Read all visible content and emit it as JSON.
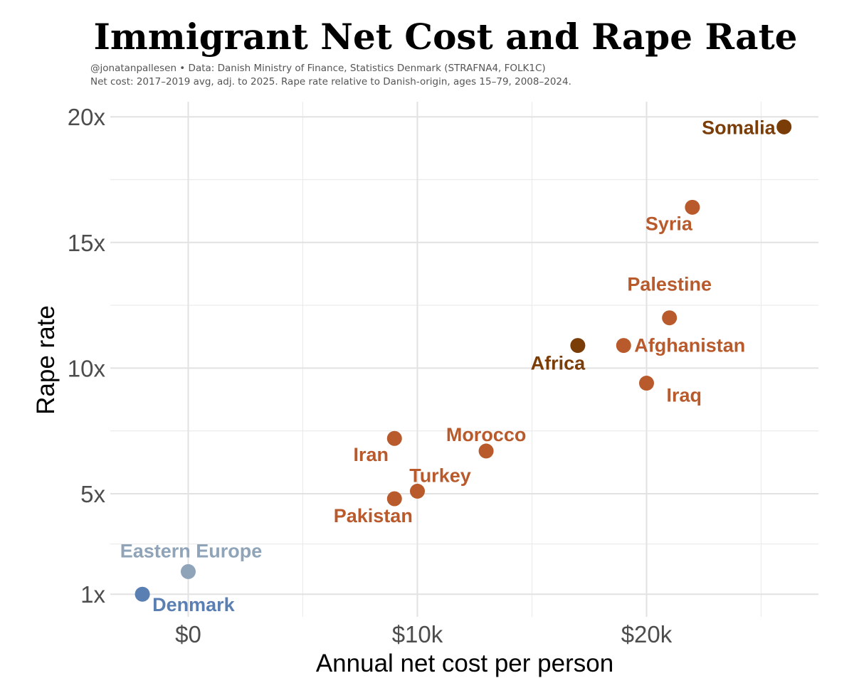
{
  "chart_data": {
    "type": "scatter",
    "title": "Immigrant Net Cost and Rape Rate",
    "subtitle_lines": [
      "@jonatanpallesen • Data: Danish Ministry of Finance, Statistics Denmark (STRAFNA4, FOLK1C)",
      "Net cost: 2017–2019 avg, adj. to 2025. Rape rate relative to Danish-origin, ages 15–79, 2008–2024."
    ],
    "xlabel": "Annual net cost per person",
    "ylabel": "Rape rate",
    "xlim": [
      -3400,
      27500
    ],
    "ylim": [
      0.1,
      20.6
    ],
    "x_ticks": [
      {
        "value": 0,
        "label": "$0"
      },
      {
        "value": 10000,
        "label": "$10k"
      },
      {
        "value": 20000,
        "label": "$20k"
      }
    ],
    "x_minor_ticks": [
      5000,
      15000,
      25000
    ],
    "y_ticks": [
      {
        "value": 1,
        "label": "1x"
      },
      {
        "value": 5,
        "label": "5x"
      },
      {
        "value": 10,
        "label": "10x"
      },
      {
        "value": 15,
        "label": "15x"
      },
      {
        "value": 20,
        "label": "20x"
      }
    ],
    "y_minor_ticks": [
      3,
      7.5,
      12.5,
      17.5
    ],
    "colors": {
      "denmark": "#5a7fb3",
      "eastern_europe": "#8fa3b9",
      "asia_mideast": "#b85a2c",
      "africa": "#7a3d08"
    },
    "points": [
      {
        "name": "Denmark",
        "x": -2000,
        "y": 1.0,
        "color": "#5a7fb3",
        "label_pos": "below-right"
      },
      {
        "name": "Eastern Europe",
        "x": 0,
        "y": 1.9,
        "color": "#8fa3b9",
        "label_pos": "above"
      },
      {
        "name": "Pakistan",
        "x": 9000,
        "y": 4.8,
        "color": "#b85a2c",
        "label_pos": "below"
      },
      {
        "name": "Turkey",
        "x": 10000,
        "y": 5.1,
        "color": "#b85a2c",
        "label_pos": "above-right"
      },
      {
        "name": "Iran",
        "x": 9000,
        "y": 7.2,
        "color": "#b85a2c",
        "label_pos": "below-left"
      },
      {
        "name": "Morocco",
        "x": 13000,
        "y": 6.7,
        "color": "#b85a2c",
        "label_pos": "above"
      },
      {
        "name": "Africa",
        "x": 17000,
        "y": 10.9,
        "color": "#7a3d08",
        "label_pos": "below-left"
      },
      {
        "name": "Afghanistan",
        "x": 19000,
        "y": 10.9,
        "color": "#b85a2c",
        "label_pos": "right"
      },
      {
        "name": "Palestine",
        "x": 21000,
        "y": 12.0,
        "color": "#b85a2c",
        "label_pos": "above"
      },
      {
        "name": "Iraq",
        "x": 20000,
        "y": 9.4,
        "color": "#b85a2c",
        "label_pos": "below-right"
      },
      {
        "name": "Syria",
        "x": 22000,
        "y": 16.4,
        "color": "#b85a2c",
        "label_pos": "below-left"
      },
      {
        "name": "Somalia",
        "x": 26000,
        "y": 19.6,
        "color": "#7a3d08",
        "label_pos": "left"
      }
    ]
  }
}
